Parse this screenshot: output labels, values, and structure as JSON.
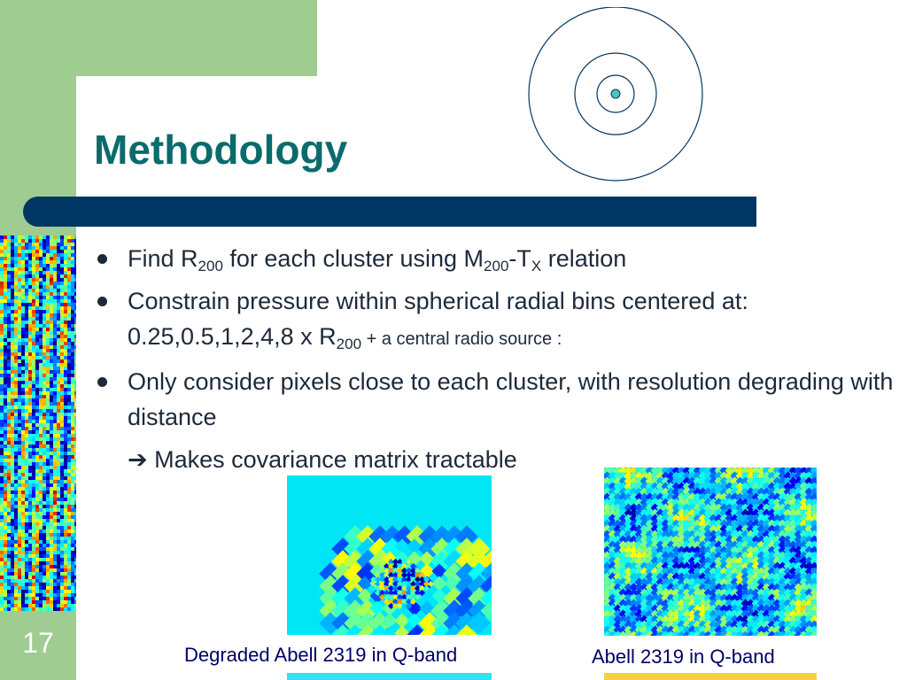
{
  "slide": {
    "title": "Methodology",
    "number": "17"
  },
  "bullets": {
    "b1": {
      "find": "Find R",
      "sub1": "200",
      "mid": " for each cluster using M",
      "sub2": "200",
      "dash": "-T",
      "sub3": "X",
      "end": " relation"
    },
    "b2": {
      "line1": "Constrain pressure within spherical radial bins centered at: 0.25,0.5,1,2,4,8 x R",
      "sub": "200",
      "tail": " + a central radio source :"
    },
    "b3": "Only consider pixels close to each cluster, with resolution degrading with distance",
    "sub_item": {
      "arrow": "➔",
      "text": " Makes covariance matrix tractable"
    }
  },
  "captions": {
    "degraded": "Degraded Abell 2319 in Q-band",
    "full": "Abell 2319 in Q-band"
  },
  "colors": {
    "green": "#9fcc90",
    "title": "#0b6b6b",
    "bar": "#003663",
    "text": "#1d2a3a",
    "caption": "#000066"
  },
  "icons": {
    "target": "concentric-circles-icon",
    "bullet": "round-bullet-icon",
    "arrow": "right-arrow-icon"
  }
}
